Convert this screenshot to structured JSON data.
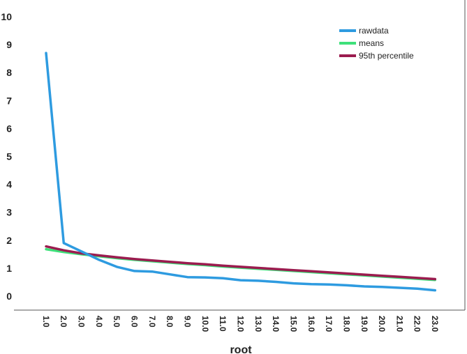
{
  "chart_data": {
    "type": "line",
    "xlabel": "root",
    "ylabel": "",
    "x": [
      "1.0",
      "2.0",
      "3.0",
      "4.0",
      "5.0",
      "6.0",
      "7.0",
      "8.0",
      "9.0",
      "10.0",
      "11.0",
      "12.0",
      "13.0",
      "14.0",
      "15.0",
      "16.0",
      "17.0",
      "18.0",
      "19.0",
      "20.0",
      "21.0",
      "22.0",
      "23.0"
    ],
    "ylim": [
      0,
      10
    ],
    "yticks": [
      0,
      1,
      2,
      3,
      4,
      5,
      6,
      7,
      8,
      9,
      10
    ],
    "grid": false,
    "legend_position": "top-right",
    "series": [
      {
        "name": "rawdata",
        "color": "#2e9be0",
        "values": [
          8.7,
          1.9,
          1.6,
          1.3,
          1.05,
          0.9,
          0.88,
          0.78,
          0.68,
          0.67,
          0.64,
          0.57,
          0.55,
          0.51,
          0.46,
          0.43,
          0.42,
          0.39,
          0.35,
          0.33,
          0.3,
          0.27,
          0.21
        ]
      },
      {
        "name": "means",
        "color": "#3ee07a",
        "values": [
          1.68,
          1.58,
          1.5,
          1.43,
          1.36,
          1.3,
          1.25,
          1.2,
          1.15,
          1.11,
          1.06,
          1.02,
          0.98,
          0.94,
          0.9,
          0.86,
          0.82,
          0.78,
          0.74,
          0.7,
          0.66,
          0.62,
          0.58
        ]
      },
      {
        "name": "95th percentile",
        "color": "#9b1c4f",
        "values": [
          1.78,
          1.64,
          1.53,
          1.46,
          1.39,
          1.33,
          1.28,
          1.23,
          1.18,
          1.14,
          1.09,
          1.05,
          1.01,
          0.97,
          0.93,
          0.89,
          0.85,
          0.81,
          0.77,
          0.73,
          0.69,
          0.65,
          0.61
        ]
      }
    ]
  }
}
